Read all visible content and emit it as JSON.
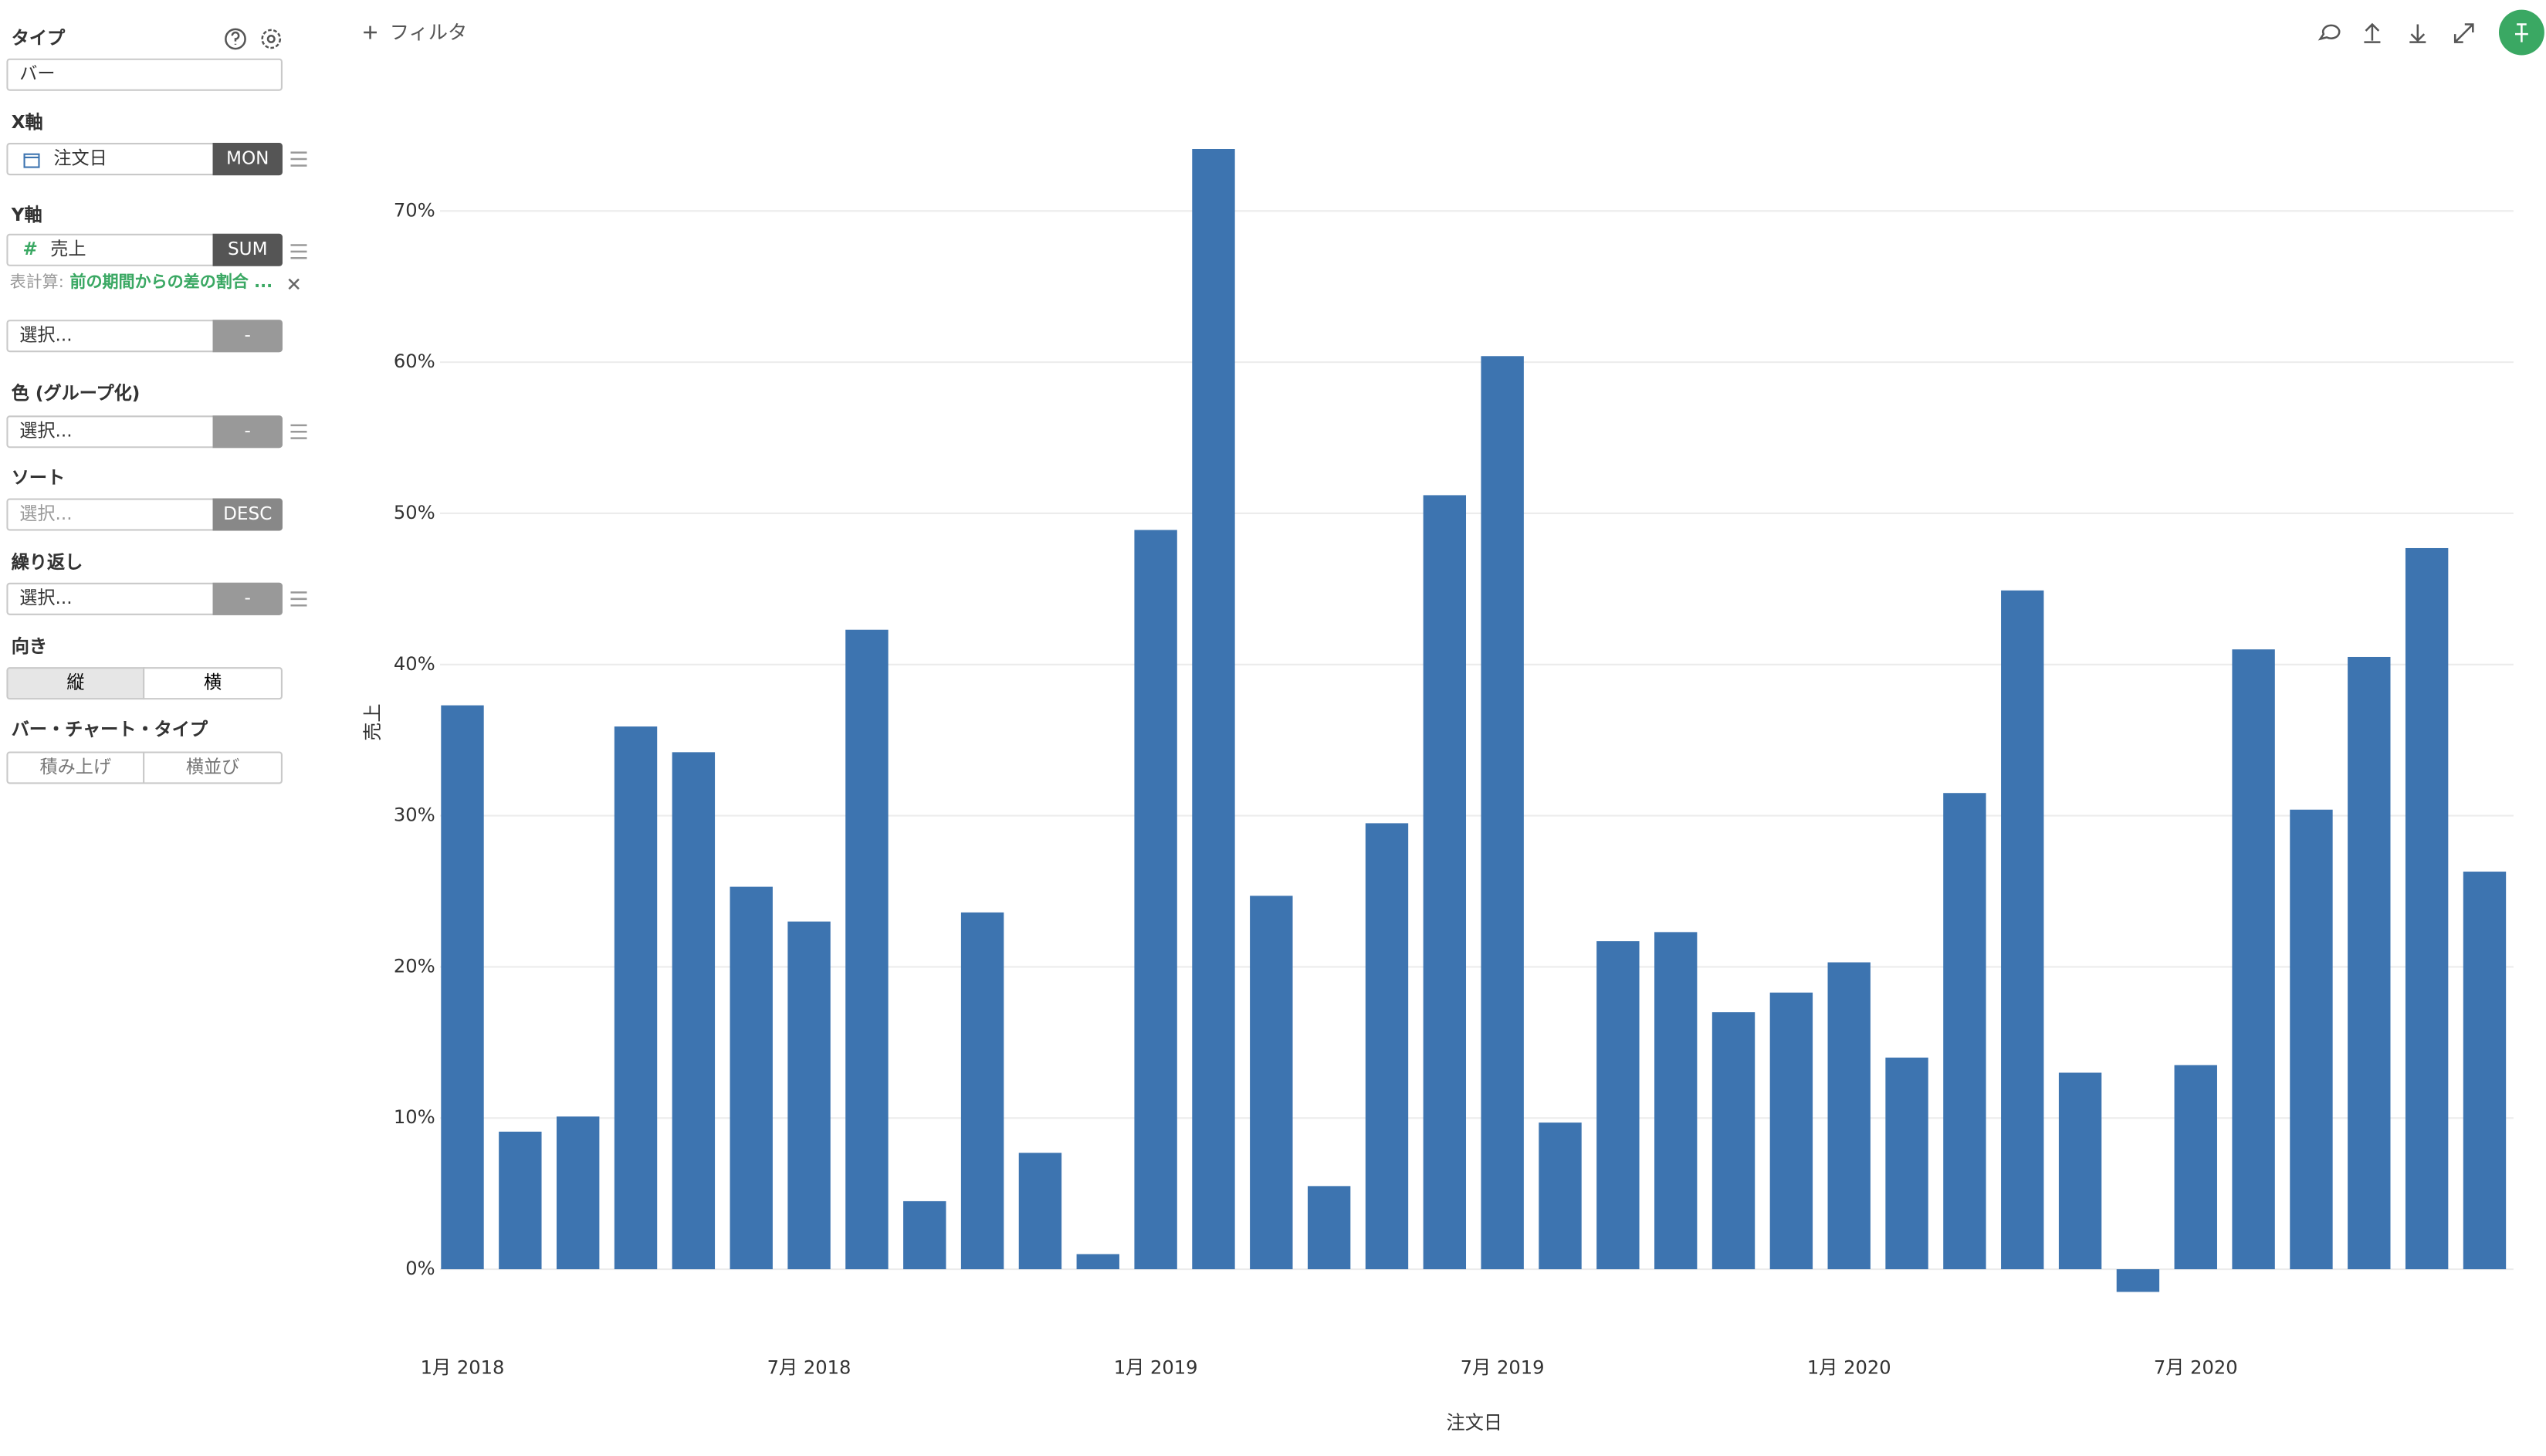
{
  "toolbar": {
    "filter": "フィルタ"
  },
  "sidebar": {
    "type_label": "タイプ",
    "type_value": "バー",
    "x_axis_label": "X軸",
    "x_field": "注文日",
    "x_agg": "MON",
    "y_axis_label": "Y軸",
    "y_icon": "#",
    "y_field": "売上",
    "y_agg": "SUM",
    "calc_label": "表計算:",
    "calc_value": "前の期間からの差の割合 ...",
    "extra_select": "選択...",
    "extra_agg": "-",
    "color_label": "色 (グループ化)",
    "color_select": "選択...",
    "color_agg": "-",
    "sort_label": "ソート",
    "sort_select": "選択...",
    "sort_dir": "DESC",
    "repeat_label": "繰り返し",
    "repeat_select": "選択...",
    "repeat_agg": "-",
    "orient_label": "向き",
    "orient_vertical": "縦",
    "orient_horizontal": "横",
    "bar_type_label": "バー・チャート・タイプ",
    "bar_stacked": "積み上げ",
    "bar_side": "横並び"
  },
  "chart_data": {
    "type": "bar",
    "x_label": "注文日",
    "y_label": "売上",
    "categories": [
      "1月 2018",
      null,
      null,
      null,
      null,
      null,
      "7月 2018",
      null,
      null,
      null,
      null,
      null,
      "1月 2019",
      null,
      null,
      null,
      null,
      null,
      "7月 2019",
      null,
      null,
      null,
      null,
      null,
      "1月 2020",
      null,
      null,
      null,
      null,
      null,
      "7月 2020",
      null,
      null,
      null,
      null,
      null
    ],
    "values": [
      37.3,
      9.1,
      10.1,
      35.9,
      34.2,
      25.3,
      23.0,
      42.3,
      4.5,
      23.6,
      7.7,
      1.0,
      48.9,
      74.1,
      24.7,
      5.5,
      29.5,
      51.2,
      60.4,
      9.7,
      21.7,
      22.3,
      17.0,
      18.3,
      20.3,
      14.0,
      31.5,
      44.9,
      13.0,
      -1.5,
      13.5,
      41.0,
      30.4,
      40.5,
      47.7,
      26.3
    ],
    "color": "#3d74b0",
    "ylim": [
      -3,
      76
    ],
    "yticks": [
      {
        "value": 0,
        "label": "0%"
      },
      {
        "value": 10,
        "label": "10%"
      },
      {
        "value": 20,
        "label": "20%"
      },
      {
        "value": 30,
        "label": "30%"
      },
      {
        "value": 40,
        "label": "40%"
      },
      {
        "value": 50,
        "label": "50%"
      },
      {
        "value": 60,
        "label": "60%"
      },
      {
        "value": 70,
        "label": "70%"
      }
    ],
    "grid": true
  }
}
